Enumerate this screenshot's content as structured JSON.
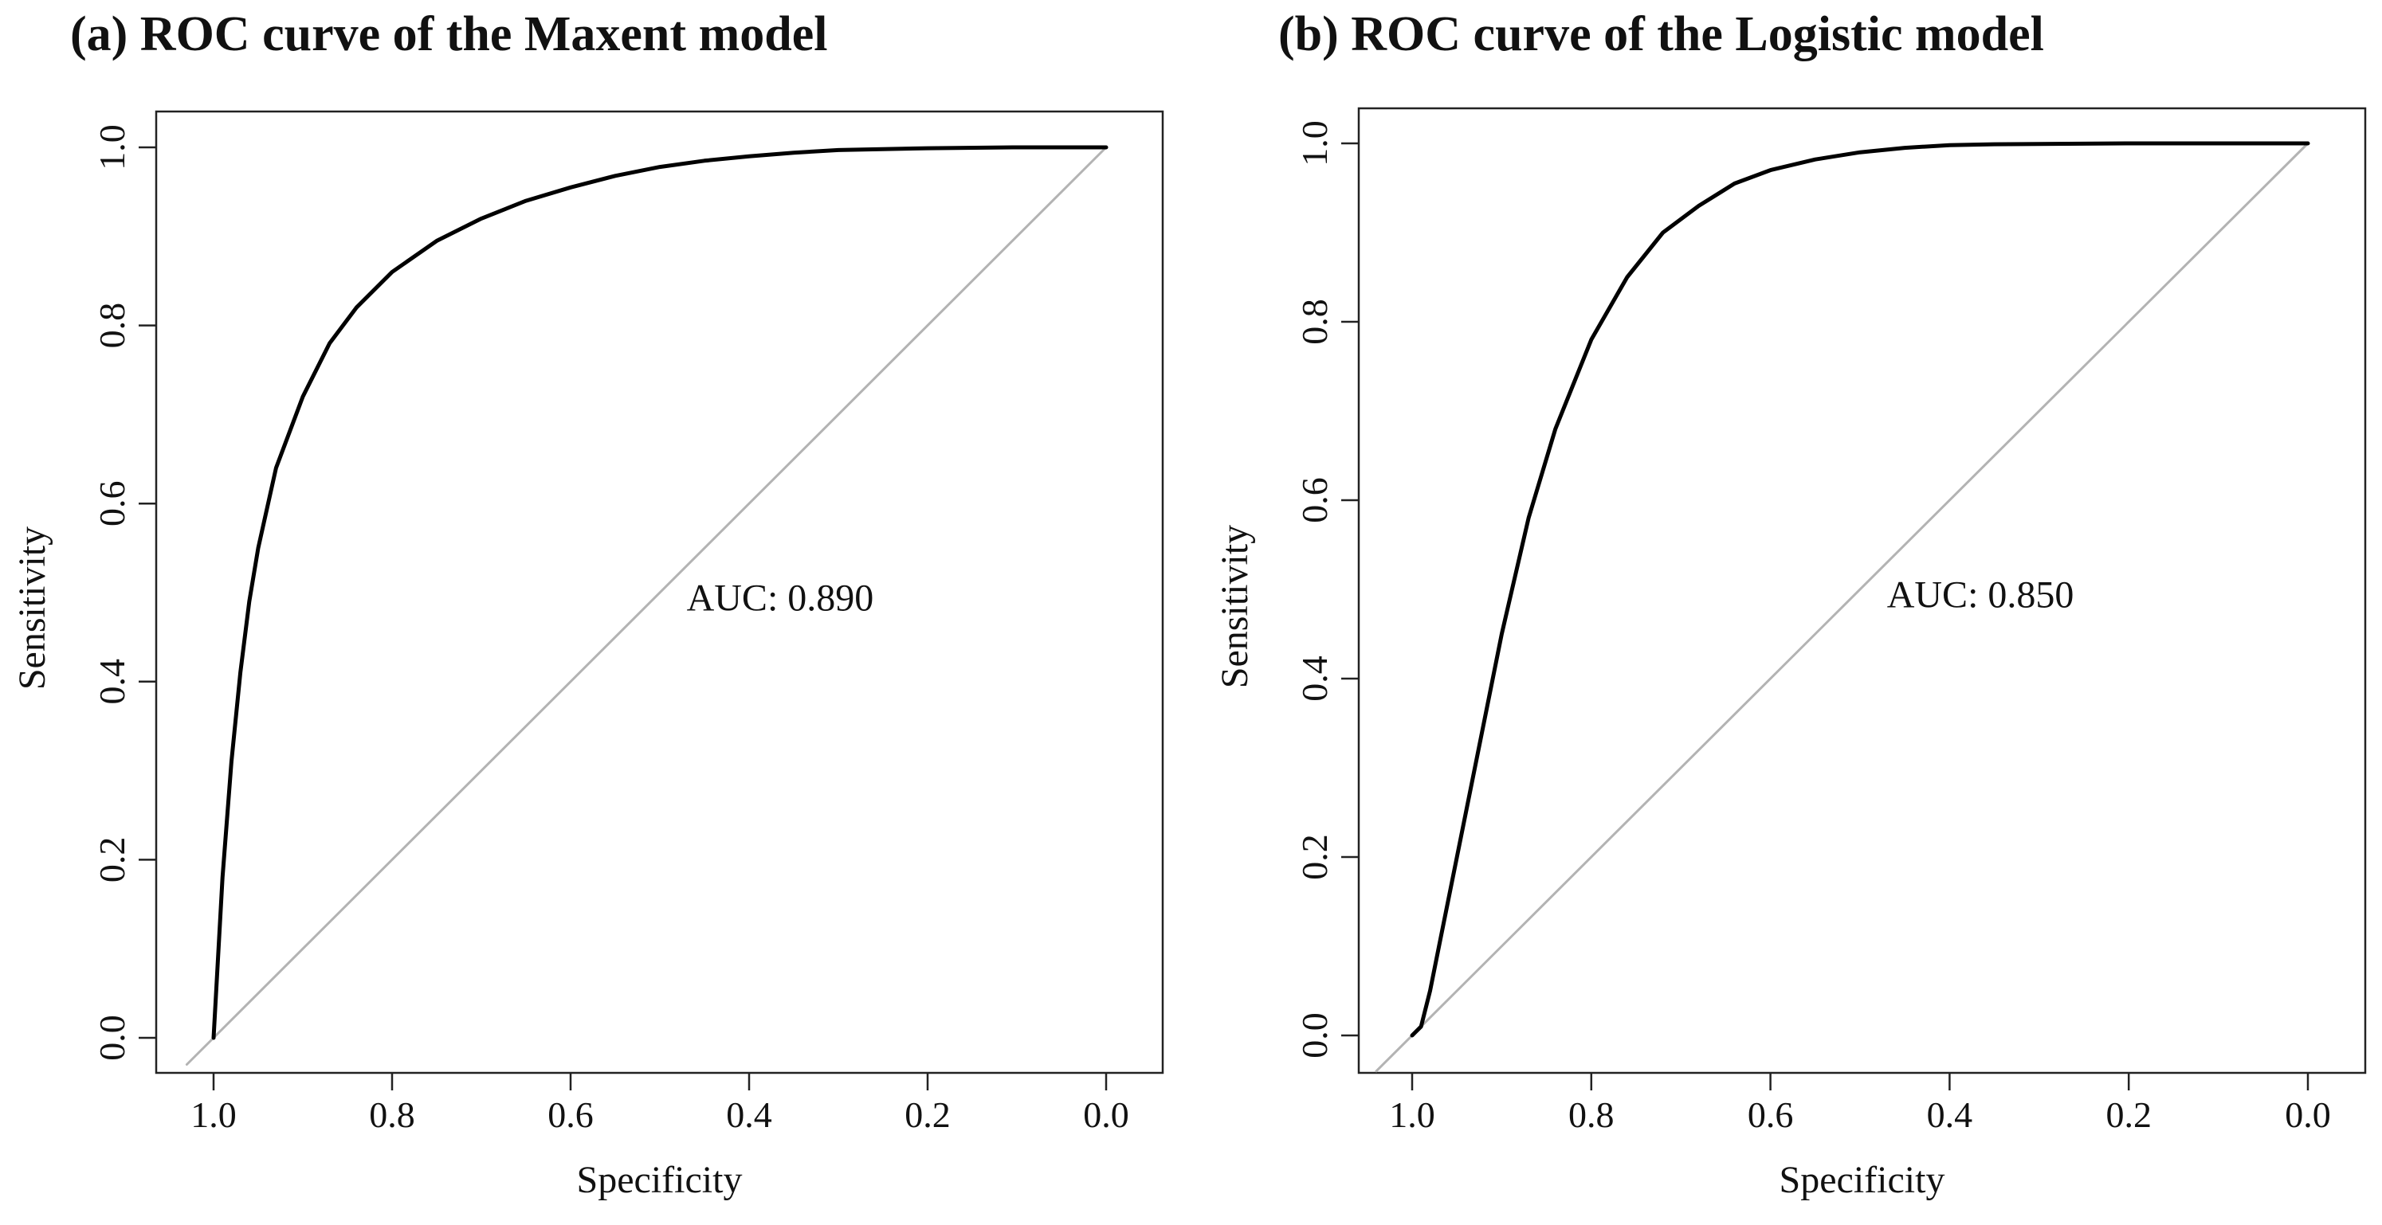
{
  "chart_data": [
    {
      "type": "line",
      "title": "(a) ROC curve of the Maxent model",
      "xlabel": "Specificity",
      "ylabel": "Sensitivity",
      "xlim": [
        1.0,
        0.0
      ],
      "ylim": [
        0.0,
        1.0
      ],
      "x_reversed": true,
      "xticks": [
        "1.0",
        "0.8",
        "0.6",
        "0.4",
        "0.2",
        "0.0"
      ],
      "yticks": [
        "0.0",
        "0.2",
        "0.4",
        "0.6",
        "0.8",
        "1.0"
      ],
      "annotation": "AUC: 0.890",
      "annotation_pos": {
        "specificity": 0.47,
        "sensitivity": 0.48
      },
      "grid": false,
      "series": [
        {
          "name": "ROC curve",
          "color": "#000000",
          "specificity": [
            1.0,
            0.99,
            0.98,
            0.97,
            0.96,
            0.95,
            0.93,
            0.9,
            0.87,
            0.84,
            0.8,
            0.75,
            0.7,
            0.65,
            0.6,
            0.55,
            0.5,
            0.45,
            0.4,
            0.35,
            0.3,
            0.2,
            0.1,
            0.0
          ],
          "sensitivity": [
            0.0,
            0.18,
            0.31,
            0.41,
            0.49,
            0.55,
            0.64,
            0.72,
            0.78,
            0.82,
            0.86,
            0.895,
            0.92,
            0.94,
            0.955,
            0.968,
            0.978,
            0.985,
            0.99,
            0.994,
            0.997,
            0.999,
            1.0,
            1.0
          ]
        },
        {
          "name": "chance line",
          "color": "#b3b3b3",
          "specificity": [
            1.03,
            0.0
          ],
          "sensitivity": [
            -0.03,
            1.0
          ]
        }
      ]
    },
    {
      "type": "line",
      "title": "(b) ROC curve of the Logistic model",
      "xlabel": "Specificity",
      "ylabel": "Sensitivity",
      "xlim": [
        1.0,
        0.0
      ],
      "ylim": [
        0.0,
        1.0
      ],
      "x_reversed": true,
      "xticks": [
        "1.0",
        "0.8",
        "0.6",
        "0.4",
        "0.2",
        "0.0"
      ],
      "yticks": [
        "0.0",
        "0.2",
        "0.4",
        "0.6",
        "0.8",
        "1.0"
      ],
      "annotation": "AUC: 0.850",
      "annotation_pos": {
        "specificity": 0.47,
        "sensitivity": 0.48
      },
      "grid": false,
      "series": [
        {
          "name": "ROC curve",
          "color": "#000000",
          "specificity": [
            1.0,
            0.99,
            0.98,
            0.97,
            0.95,
            0.93,
            0.9,
            0.87,
            0.84,
            0.8,
            0.76,
            0.72,
            0.68,
            0.64,
            0.6,
            0.55,
            0.5,
            0.45,
            0.4,
            0.35,
            0.2,
            0.0
          ],
          "sensitivity": [
            0.0,
            0.01,
            0.05,
            0.1,
            0.2,
            0.3,
            0.45,
            0.58,
            0.68,
            0.78,
            0.85,
            0.9,
            0.93,
            0.955,
            0.97,
            0.982,
            0.99,
            0.995,
            0.998,
            0.999,
            1.0,
            1.0
          ]
        },
        {
          "name": "chance line",
          "color": "#b3b3b3",
          "specificity": [
            1.04,
            0.0
          ],
          "sensitivity": [
            -0.04,
            1.0
          ]
        }
      ]
    }
  ]
}
